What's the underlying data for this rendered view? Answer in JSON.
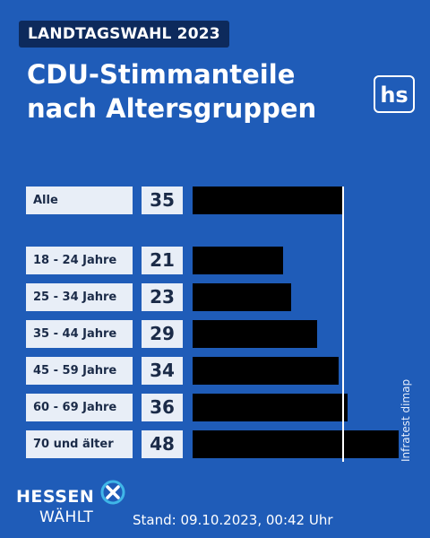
{
  "header": {
    "badge": "LANDTAGSWAHL 2023",
    "title_line1": "CDU-Stimmanteile",
    "title_line2": "nach Altersgruppen",
    "logo": "hs"
  },
  "chart_data": {
    "type": "bar",
    "orientation": "horizontal",
    "categories": [
      "Alle",
      "18 - 24 Jahre",
      "25 - 34 Jahre",
      "35 - 44 Jahre",
      "45 - 59 Jahre",
      "60 - 69 Jahre",
      "70 und älter"
    ],
    "values": [
      35,
      21,
      23,
      29,
      34,
      36,
      48
    ],
    "reference_value": 35,
    "xlim": [
      0,
      48
    ],
    "bar_color": "#000000"
  },
  "source": "Infratest dimap",
  "footer": {
    "brand_line1": "HESSEN",
    "brand_line2": "WÄHLT",
    "stand": "Stand: 09.10.2023, 00:42 Uhr"
  },
  "colors": {
    "background": "#1f5cb8",
    "badge": "#0d2a5c",
    "label_box": "#e8eef7",
    "accent": "#3fb6e8"
  }
}
